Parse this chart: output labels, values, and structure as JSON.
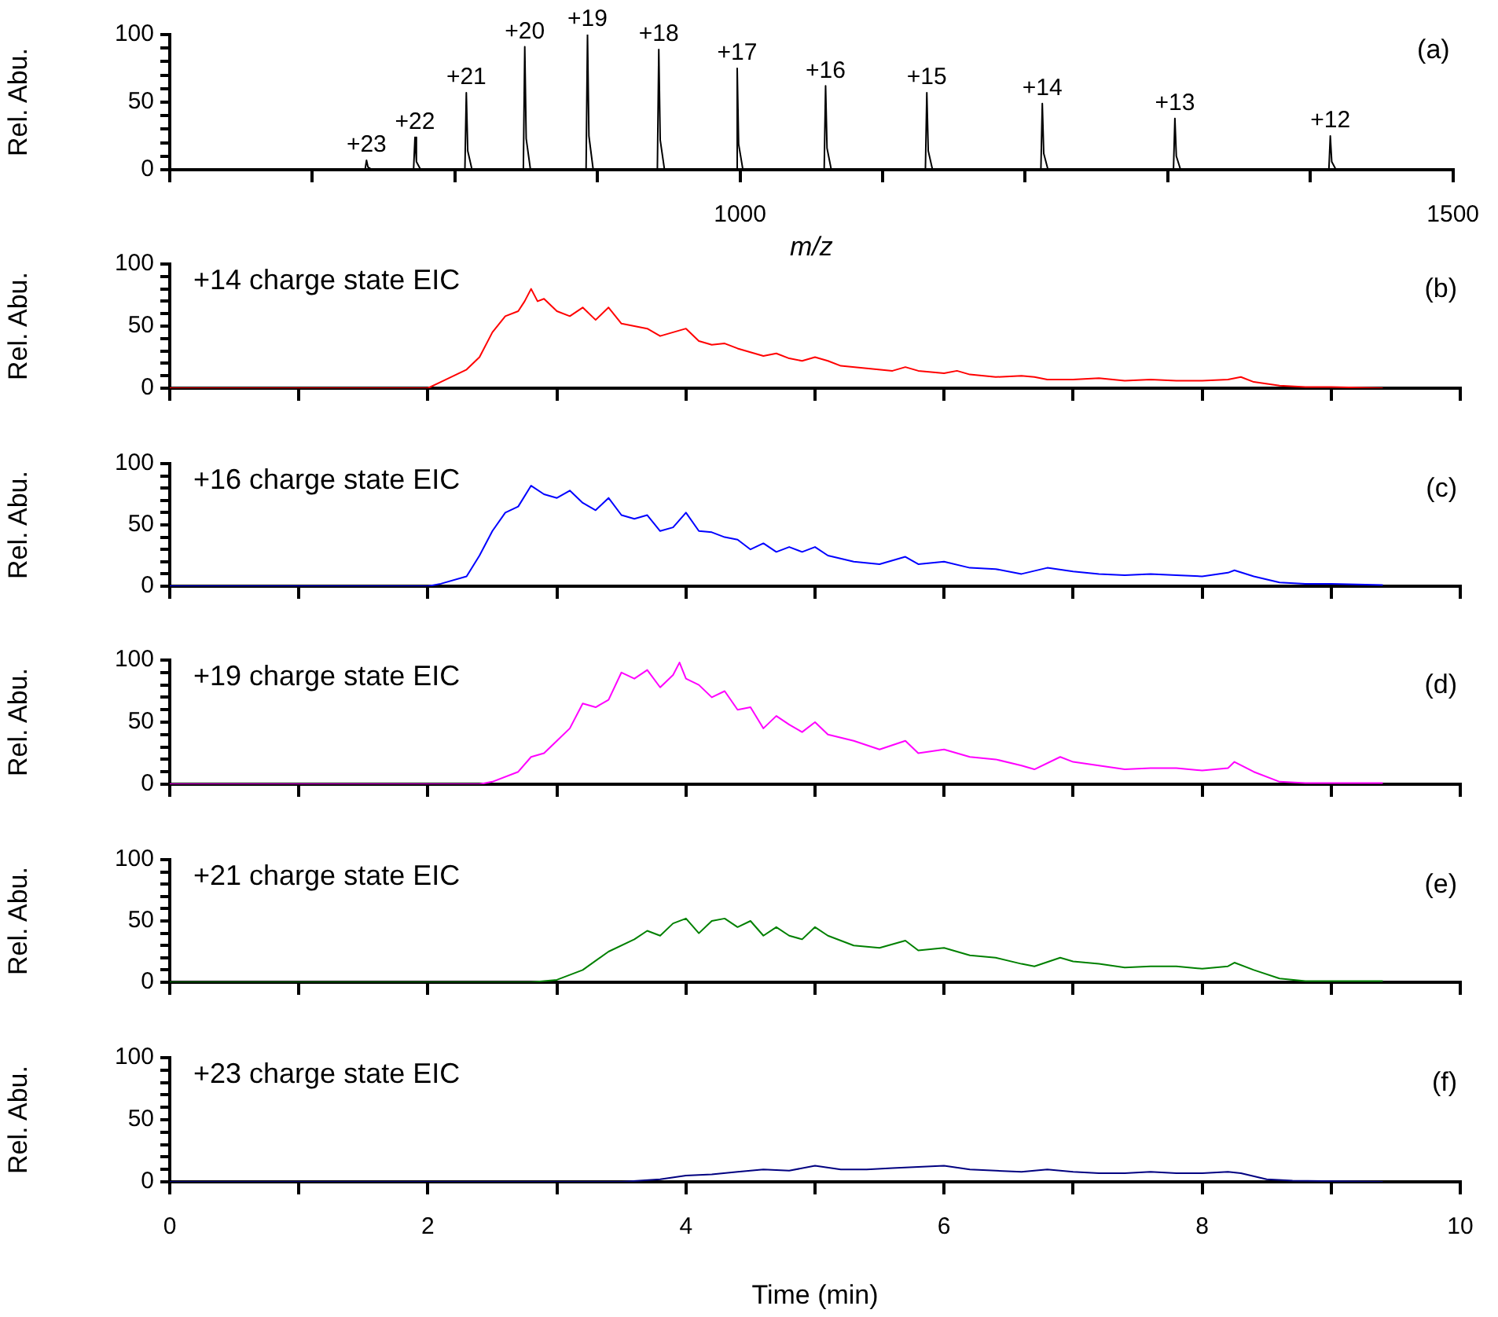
{
  "chart_data": [
    {
      "type": "line",
      "xlabel": "m/z",
      "ylabel": "Rel. Abu.",
      "xlim": [
        600,
        1500
      ],
      "ylim": [
        0,
        100
      ],
      "xticks": [
        {
          "value": 600,
          "label": null
        },
        {
          "value": 700,
          "label": null
        },
        {
          "value": 800,
          "label": null
        },
        {
          "value": 900,
          "label": null
        },
        1000,
        {
          "value": 1100,
          "label": null
        },
        {
          "value": 1200,
          "label": null
        },
        {
          "value": 1300,
          "label": null
        },
        {
          "value": 1400,
          "label": null
        },
        1500
      ],
      "yticks": [
        0,
        {
          "value": 10,
          "label": null
        },
        {
          "value": 20,
          "label": null
        },
        {
          "value": 30,
          "label": null
        },
        {
          "value": 40,
          "label": null
        },
        50,
        {
          "value": 60,
          "label": null
        },
        {
          "value": 70,
          "label": null
        },
        {
          "value": 80,
          "label": null
        },
        {
          "value": 90,
          "label": null
        },
        100
      ],
      "x": [
        600,
        737,
        738,
        739,
        742,
        771,
        772,
        773,
        776,
        807,
        808,
        809,
        812,
        848,
        849,
        850,
        853,
        892,
        893,
        894,
        897,
        942,
        943,
        944,
        947,
        997,
        998,
        999,
        1002,
        1059,
        1060,
        1061,
        1064,
        1130,
        1131,
        1132,
        1135,
        1211,
        1212,
        1213,
        1216,
        1304,
        1305,
        1306,
        1309,
        1413,
        1414,
        1415,
        1418,
        1500
      ],
      "series": [
        {
          "color": "#000000",
          "values": [
            0,
            0,
            7,
            2,
            0,
            0,
            24,
            6,
            0,
            0,
            57,
            14,
            0,
            0,
            91,
            23,
            0,
            0,
            100,
            25,
            0,
            0,
            89,
            22,
            0,
            0,
            75,
            19,
            0,
            0,
            62,
            16,
            0,
            0,
            57,
            14,
            0,
            0,
            49,
            12,
            0,
            0,
            38,
            10,
            0,
            0,
            25,
            6,
            0,
            0
          ]
        }
      ],
      "annotations": [
        {
          "text": "+23",
          "x": 738,
          "y": 7
        },
        {
          "text": "+22",
          "x": 772,
          "y": 24
        },
        {
          "text": "+21",
          "x": 808,
          "y": 57
        },
        {
          "text": "+20",
          "x": 849,
          "y": 91
        },
        {
          "text": "+19",
          "x": 893,
          "y": 100
        },
        {
          "text": "+18",
          "x": 943,
          "y": 89
        },
        {
          "text": "+17",
          "x": 998,
          "y": 75
        },
        {
          "text": "+16",
          "x": 1060,
          "y": 62
        },
        {
          "text": "+15",
          "x": 1131,
          "y": 57
        },
        {
          "text": "+14",
          "x": 1212,
          "y": 49
        },
        {
          "text": "+13",
          "x": 1305,
          "y": 38
        },
        {
          "text": "+12",
          "x": 1414,
          "y": 25
        },
        "(a)"
      ]
    },
    {
      "type": "line",
      "title": "+14 charge state EIC",
      "ylabel": "Rel. Abu.",
      "xlim": [
        0,
        10
      ],
      "ylim": [
        0,
        100
      ],
      "tick_labels": "y",
      "xticks": [
        {
          "value": 0,
          "label": null
        },
        {
          "value": 1,
          "label": null
        },
        {
          "value": 2,
          "label": null
        },
        {
          "value": 3,
          "label": null
        },
        {
          "value": 4,
          "label": null
        },
        {
          "value": 5,
          "label": null
        },
        {
          "value": 6,
          "label": null
        },
        {
          "value": 7,
          "label": null
        },
        {
          "value": 8,
          "label": null
        },
        {
          "value": 9,
          "label": null
        },
        {
          "value": 10,
          "label": null
        }
      ],
      "yticks": [
        0,
        {
          "value": 10,
          "label": null
        },
        {
          "value": 20,
          "label": null
        },
        {
          "value": 30,
          "label": null
        },
        {
          "value": 40,
          "label": null
        },
        50,
        {
          "value": 60,
          "label": null
        },
        {
          "value": 70,
          "label": null
        },
        {
          "value": 80,
          "label": null
        },
        {
          "value": 90,
          "label": null
        },
        100
      ],
      "x": [
        0,
        1,
        2,
        2.1,
        2.3,
        2.4,
        2.5,
        2.6,
        2.7,
        2.75,
        2.8,
        2.85,
        2.9,
        3,
        3.1,
        3.2,
        3.3,
        3.4,
        3.5,
        3.6,
        3.7,
        3.8,
        3.9,
        4,
        4.1,
        4.2,
        4.3,
        4.4,
        4.6,
        4.7,
        4.8,
        4.9,
        5,
        5.1,
        5.2,
        5.4,
        5.6,
        5.7,
        5.8,
        6,
        6.1,
        6.2,
        6.4,
        6.6,
        6.7,
        6.8,
        7,
        7.2,
        7.4,
        7.6,
        7.8,
        8,
        8.2,
        8.3,
        8.4,
        8.6,
        8.8,
        9,
        9.4
      ],
      "series": [
        {
          "color": "#ff0000",
          "values": [
            0,
            0,
            0,
            5,
            15,
            25,
            45,
            58,
            62,
            70,
            80,
            70,
            72,
            62,
            58,
            65,
            55,
            65,
            52,
            50,
            48,
            42,
            45,
            48,
            38,
            35,
            36,
            32,
            26,
            28,
            24,
            22,
            25,
            22,
            18,
            16,
            14,
            17,
            14,
            12,
            14,
            11,
            9,
            10,
            9,
            7,
            7,
            8,
            6,
            7,
            6,
            6,
            7,
            9,
            5,
            2,
            1,
            1,
            0
          ]
        }
      ],
      "annotations": [
        "(b)"
      ]
    },
    {
      "type": "line",
      "title": "+16 charge state EIC",
      "ylabel": "Rel. Abu.",
      "xlim": [
        0,
        10
      ],
      "ylim": [
        0,
        100
      ],
      "tick_labels": "y",
      "xticks": [
        {
          "value": 0,
          "label": null
        },
        {
          "value": 1,
          "label": null
        },
        {
          "value": 2,
          "label": null
        },
        {
          "value": 3,
          "label": null
        },
        {
          "value": 4,
          "label": null
        },
        {
          "value": 5,
          "label": null
        },
        {
          "value": 6,
          "label": null
        },
        {
          "value": 7,
          "label": null
        },
        {
          "value": 8,
          "label": null
        },
        {
          "value": 9,
          "label": null
        },
        {
          "value": 10,
          "label": null
        }
      ],
      "yticks": [
        0,
        {
          "value": 10,
          "label": null
        },
        {
          "value": 20,
          "label": null
        },
        {
          "value": 30,
          "label": null
        },
        {
          "value": 40,
          "label": null
        },
        50,
        {
          "value": 60,
          "label": null
        },
        {
          "value": 70,
          "label": null
        },
        {
          "value": 80,
          "label": null
        },
        {
          "value": 90,
          "label": null
        },
        100
      ],
      "x": [
        0,
        1,
        2,
        2.1,
        2.3,
        2.4,
        2.5,
        2.6,
        2.7,
        2.8,
        2.9,
        3,
        3.1,
        3.2,
        3.3,
        3.4,
        3.5,
        3.6,
        3.7,
        3.8,
        3.9,
        4,
        4.1,
        4.2,
        4.3,
        4.4,
        4.5,
        4.6,
        4.7,
        4.8,
        4.9,
        5,
        5.1,
        5.3,
        5.5,
        5.7,
        5.8,
        6,
        6.2,
        6.4,
        6.6,
        6.8,
        7,
        7.2,
        7.4,
        7.6,
        7.8,
        8,
        8.2,
        8.25,
        8.4,
        8.6,
        8.8,
        9,
        9.4
      ],
      "series": [
        {
          "color": "#0000ff",
          "values": [
            0,
            0,
            0,
            2,
            8,
            25,
            45,
            60,
            65,
            82,
            75,
            72,
            78,
            68,
            62,
            72,
            58,
            55,
            58,
            45,
            48,
            60,
            45,
            44,
            40,
            38,
            30,
            35,
            28,
            32,
            28,
            32,
            25,
            20,
            18,
            24,
            18,
            20,
            15,
            14,
            10,
            15,
            12,
            10,
            9,
            10,
            9,
            8,
            11,
            13,
            8,
            3,
            2,
            2,
            1
          ]
        }
      ],
      "annotations": [
        "(c)"
      ]
    },
    {
      "type": "line",
      "title": "+19 charge state EIC",
      "ylabel": "Rel. Abu.",
      "xlim": [
        0,
        10
      ],
      "ylim": [
        0,
        100
      ],
      "tick_labels": "y",
      "xticks": [
        {
          "value": 0,
          "label": null
        },
        {
          "value": 1,
          "label": null
        },
        {
          "value": 2,
          "label": null
        },
        {
          "value": 3,
          "label": null
        },
        {
          "value": 4,
          "label": null
        },
        {
          "value": 5,
          "label": null
        },
        {
          "value": 6,
          "label": null
        },
        {
          "value": 7,
          "label": null
        },
        {
          "value": 8,
          "label": null
        },
        {
          "value": 9,
          "label": null
        },
        {
          "value": 10,
          "label": null
        }
      ],
      "yticks": [
        0,
        {
          "value": 10,
          "label": null
        },
        {
          "value": 20,
          "label": null
        },
        {
          "value": 30,
          "label": null
        },
        {
          "value": 40,
          "label": null
        },
        50,
        {
          "value": 60,
          "label": null
        },
        {
          "value": 70,
          "label": null
        },
        {
          "value": 80,
          "label": null
        },
        {
          "value": 90,
          "label": null
        },
        100
      ],
      "x": [
        0,
        1,
        2,
        2.4,
        2.5,
        2.7,
        2.8,
        2.9,
        3,
        3.1,
        3.2,
        3.3,
        3.4,
        3.5,
        3.6,
        3.7,
        3.8,
        3.9,
        3.95,
        4,
        4.1,
        4.2,
        4.3,
        4.4,
        4.5,
        4.6,
        4.7,
        4.8,
        4.9,
        5,
        5.1,
        5.3,
        5.5,
        5.7,
        5.8,
        6,
        6.2,
        6.4,
        6.6,
        6.7,
        6.9,
        7,
        7.2,
        7.4,
        7.6,
        7.8,
        8,
        8.2,
        8.25,
        8.4,
        8.6,
        8.8,
        9.4
      ],
      "series": [
        {
          "color": "#ff00ff",
          "values": [
            0,
            0,
            0,
            0,
            2,
            10,
            22,
            25,
            35,
            45,
            65,
            62,
            68,
            90,
            85,
            92,
            78,
            88,
            98,
            85,
            80,
            70,
            75,
            60,
            62,
            45,
            55,
            48,
            42,
            50,
            40,
            35,
            28,
            35,
            25,
            28,
            22,
            20,
            15,
            12,
            22,
            18,
            15,
            12,
            13,
            13,
            11,
            13,
            18,
            10,
            2,
            1,
            1
          ]
        }
      ],
      "annotations": [
        "(d)"
      ]
    },
    {
      "type": "line",
      "title": "+21 charge state EIC",
      "ylabel": "Rel. Abu.",
      "xlim": [
        0,
        10
      ],
      "ylim": [
        0,
        100
      ],
      "tick_labels": "y",
      "xticks": [
        {
          "value": 0,
          "label": null
        },
        {
          "value": 1,
          "label": null
        },
        {
          "value": 2,
          "label": null
        },
        {
          "value": 3,
          "label": null
        },
        {
          "value": 4,
          "label": null
        },
        {
          "value": 5,
          "label": null
        },
        {
          "value": 6,
          "label": null
        },
        {
          "value": 7,
          "label": null
        },
        {
          "value": 8,
          "label": null
        },
        {
          "value": 9,
          "label": null
        },
        {
          "value": 10,
          "label": null
        }
      ],
      "yticks": [
        0,
        {
          "value": 10,
          "label": null
        },
        {
          "value": 20,
          "label": null
        },
        {
          "value": 30,
          "label": null
        },
        {
          "value": 40,
          "label": null
        },
        50,
        {
          "value": 60,
          "label": null
        },
        {
          "value": 70,
          "label": null
        },
        {
          "value": 80,
          "label": null
        },
        {
          "value": 90,
          "label": null
        },
        100
      ],
      "x": [
        0,
        1,
        2,
        2.8,
        3,
        3.2,
        3.4,
        3.6,
        3.7,
        3.8,
        3.9,
        4,
        4.1,
        4.2,
        4.3,
        4.4,
        4.5,
        4.6,
        4.7,
        4.8,
        4.9,
        5,
        5.1,
        5.3,
        5.5,
        5.7,
        5.8,
        6,
        6.2,
        6.4,
        6.6,
        6.7,
        6.9,
        7,
        7.2,
        7.4,
        7.6,
        7.8,
        8,
        8.2,
        8.25,
        8.4,
        8.6,
        8.8,
        9.4
      ],
      "series": [
        {
          "color": "#008000",
          "values": [
            0,
            0,
            0,
            0,
            2,
            10,
            25,
            35,
            42,
            38,
            48,
            52,
            40,
            50,
            52,
            45,
            50,
            38,
            45,
            38,
            35,
            45,
            38,
            30,
            28,
            34,
            26,
            28,
            22,
            20,
            15,
            13,
            20,
            17,
            15,
            12,
            13,
            13,
            11,
            13,
            16,
            10,
            3,
            1,
            1
          ]
        }
      ],
      "annotations": [
        "(e)"
      ]
    },
    {
      "type": "line",
      "title": "+23 charge state EIC",
      "xlabel": "Time (min)",
      "ylabel": "Rel. Abu.",
      "xlim": [
        0,
        10
      ],
      "ylim": [
        0,
        100
      ],
      "xticks": [
        0,
        {
          "value": 1,
          "label": null
        },
        2,
        {
          "value": 3,
          "label": null
        },
        4,
        {
          "value": 5,
          "label": null
        },
        6,
        {
          "value": 7,
          "label": null
        },
        8,
        {
          "value": 9,
          "label": null
        },
        10
      ],
      "yticks": [
        0,
        {
          "value": 10,
          "label": null
        },
        {
          "value": 20,
          "label": null
        },
        {
          "value": 30,
          "label": null
        },
        {
          "value": 40,
          "label": null
        },
        50,
        {
          "value": 60,
          "label": null
        },
        {
          "value": 70,
          "label": null
        },
        {
          "value": 80,
          "label": null
        },
        {
          "value": 90,
          "label": null
        },
        100
      ],
      "x": [
        0,
        1,
        2,
        3,
        3.5,
        3.8,
        4,
        4.2,
        4.4,
        4.6,
        4.8,
        5,
        5.2,
        5.4,
        5.6,
        5.8,
        6,
        6.2,
        6.4,
        6.6,
        6.8,
        7,
        7.2,
        7.4,
        7.6,
        7.8,
        8,
        8.2,
        8.3,
        8.5,
        8.7,
        9.4
      ],
      "series": [
        {
          "color": "#000080",
          "values": [
            0,
            0,
            0,
            0,
            0,
            2,
            5,
            6,
            8,
            10,
            9,
            13,
            10,
            10,
            11,
            12,
            13,
            10,
            9,
            8,
            10,
            8,
            7,
            7,
            8,
            7,
            7,
            8,
            7,
            2,
            1,
            0
          ]
        }
      ],
      "annotations": [
        "(f)"
      ]
    }
  ]
}
